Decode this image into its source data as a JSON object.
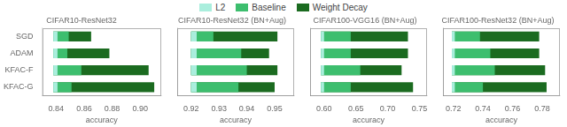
{
  "chart_data": [
    {
      "type": "bar",
      "orientation": "horizontal",
      "title": "CIFAR10-ResNet32",
      "xlabel": "accuracy",
      "categories": [
        "KFAC-G",
        "KFAC-F",
        "ADAM",
        "SGD"
      ],
      "start": [
        0.838,
        0.838,
        0.838,
        0.838
      ],
      "series": [
        {
          "name": "L2",
          "color": "#aaeedd",
          "values": [
            0.841,
            0.841,
            0.841,
            0.841
          ]
        },
        {
          "name": "Baseline",
          "color": "#3dbe6e",
          "values": [
            0.851,
            0.858,
            0.848,
            0.849
          ]
        },
        {
          "name": "Weight Decay",
          "color": "#1b6b20",
          "values": [
            0.91,
            0.906,
            0.878,
            0.865
          ]
        }
      ],
      "xlim": [
        0.83,
        0.915
      ],
      "xticks": [
        0.84,
        0.86,
        0.88,
        {
          "value": 0.9,
          "label": "0.90"
        }
      ],
      "grid": false,
      "legend": "top"
    },
    {
      "type": "bar",
      "orientation": "horizontal",
      "title": "CIFAR10-ResNet32 (BN+Aug)",
      "xlabel": "accuracy",
      "categories": [
        "KFAC-G",
        "KFAC-F",
        "ADAM",
        "SGD"
      ],
      "start": [
        0.92,
        0.92,
        0.92,
        0.92
      ],
      "series": [
        {
          "name": "L2",
          "color": "#aaeedd",
          "values": [
            0.922,
            0.922,
            0.922,
            0.922
          ]
        },
        {
          "name": "Baseline",
          "color": "#3dbe6e",
          "values": [
            0.937,
            0.94,
            0.938,
            0.928
          ]
        },
        {
          "name": "Weight Decay",
          "color": "#1b6b20",
          "values": [
            0.95,
            0.951,
            0.948,
            0.951
          ]
        }
      ],
      "xlim": [
        0.915,
        0.957
      ],
      "xticks": [
        0.92,
        0.93,
        0.94,
        0.95
      ],
      "grid": false,
      "tick_labels": "x"
    },
    {
      "type": "bar",
      "orientation": "horizontal",
      "title": "CIFAR100-VGG16 (BN+Aug)",
      "xlabel": "accuracy",
      "categories": [
        "KFAC-G",
        "KFAC-F",
        "ADAM",
        "SGD"
      ],
      "start": [
        0.595,
        0.595,
        0.595,
        0.595
      ],
      "series": [
        {
          "name": "L2",
          "color": "#aaeedd",
          "values": [
            0.6,
            0.6,
            0.6,
            0.6
          ]
        },
        {
          "name": "Baseline",
          "color": "#3dbe6e",
          "values": [
            0.642,
            0.657,
            0.642,
            0.642
          ]
        },
        {
          "name": "Weight Decay",
          "color": "#1b6b20",
          "values": [
            0.74,
            0.722,
            0.732,
            0.732
          ]
        }
      ],
      "xlim": [
        0.578,
        0.762
      ],
      "xticks": [
        {
          "value": 0.6,
          "label": "0.60"
        },
        0.65,
        {
          "value": 0.7,
          "label": "0.70"
        },
        0.75
      ],
      "grid": false,
      "tick_labels": "x"
    },
    {
      "type": "bar",
      "orientation": "horizontal",
      "title": "CIFAR100-ResNet32 (BN+Aug)",
      "xlabel": "accuracy",
      "categories": [
        "KFAC-G",
        "KFAC-F",
        "ADAM",
        "SGD"
      ],
      "start": [
        0.719,
        0.719,
        0.719,
        0.719
      ],
      "series": [
        {
          "name": "L2",
          "color": "#aaeedd",
          "values": [
            0.721,
            0.721,
            0.721,
            0.721
          ]
        },
        {
          "name": "Baseline",
          "color": "#3dbe6e",
          "values": [
            0.74,
            0.748,
            0.745,
            0.738
          ]
        },
        {
          "name": "Weight Decay",
          "color": "#1b6b20",
          "values": [
            0.783,
            0.782,
            0.778,
            0.778
          ]
        }
      ],
      "xlim": [
        0.713,
        0.792
      ],
      "xticks": [
        0.72,
        0.74,
        0.76,
        0.78
      ],
      "grid": false,
      "tick_labels": "x"
    }
  ]
}
